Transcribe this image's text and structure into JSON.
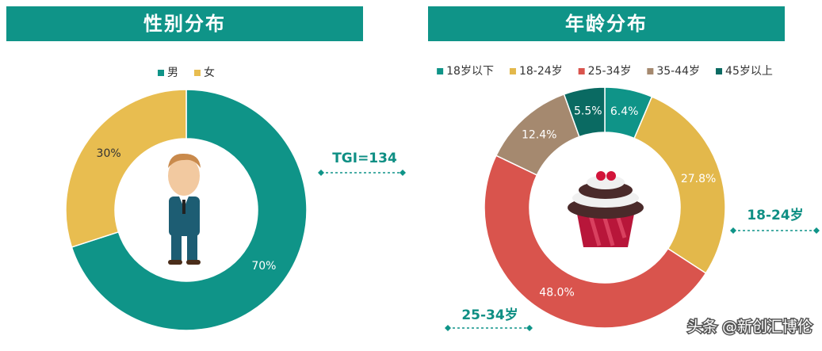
{
  "chart_data": [
    {
      "type": "pie",
      "title": "性别分布",
      "categories": [
        "男",
        "女"
      ],
      "values": [
        70,
        30
      ],
      "value_labels": [
        "70%",
        "30%"
      ],
      "colors": [
        "#0f9488",
        "#e8bd50"
      ],
      "label_colors": [
        "#ffffff",
        "#333333"
      ],
      "legend": "top",
      "annotations": [
        "TGI=134"
      ]
    },
    {
      "type": "pie",
      "title": "年龄分布",
      "categories": [
        "18岁以下",
        "18-24岁",
        "25-34岁",
        "35-44岁",
        "45岁以上"
      ],
      "values": [
        6.4,
        27.8,
        48.0,
        12.4,
        5.5
      ],
      "value_labels": [
        "6.4%",
        "27.8%",
        "48.0%",
        "12.4%",
        "5.5%"
      ],
      "colors": [
        "#0f9488",
        "#e3b84b",
        "#d9544d",
        "#a5896f",
        "#0a6a62"
      ],
      "label_colors": [
        "#ffffff",
        "#ffffff",
        "#ffffff",
        "#ffffff",
        "#ffffff"
      ],
      "legend": "top",
      "annotations": [
        "18-24岁",
        "25-34岁"
      ]
    }
  ],
  "watermark": "头条 @新创汇博伦"
}
